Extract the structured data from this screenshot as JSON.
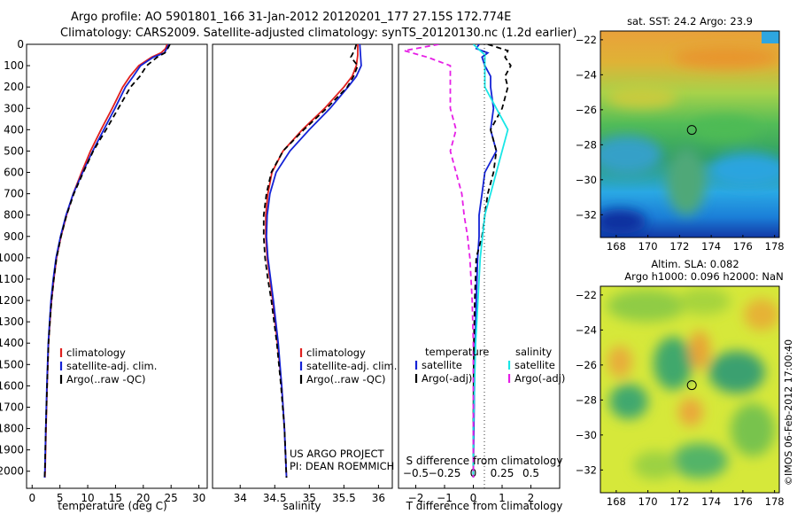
{
  "header": {
    "line1": "Argo profile: AO 5901801_166 31-Jan-2012 20120201_177 27.15S 172.774E",
    "line2": "Climatology: CARS2009. Satellite-adjusted climatology: synTS_20120130.nc (1.2d earlier)"
  },
  "side_label": "©IMOS 06-Feb-2012 17:00:40",
  "colors": {
    "red": "#e0201e",
    "blue": "#1423d6",
    "black": "#000000",
    "cyan": "#19e6e6",
    "magenta": "#e61ee6"
  },
  "depth_axis": {
    "ylim": [
      0,
      2080
    ],
    "ticks": [
      0,
      100,
      200,
      300,
      400,
      500,
      600,
      700,
      800,
      900,
      1000,
      1100,
      1200,
      1300,
      1400,
      1500,
      1600,
      1700,
      1800,
      1900,
      2000
    ]
  },
  "chart_data": [
    {
      "type": "line",
      "xlabel": "temperature (deg C)",
      "xlim": [
        -1,
        31.5
      ],
      "xticks": [
        0,
        5,
        10,
        15,
        20,
        25,
        30
      ],
      "legend": {
        "placement": "bottom-left",
        "items": [
          {
            "name": "climatology",
            "color": "#e0201e"
          },
          {
            "name": "satellite-adj. clim.",
            "color": "#1423d6"
          },
          {
            "name": "Argo(..raw -QC)",
            "color": "#000000"
          }
        ]
      },
      "series": [
        {
          "name": "climatology",
          "color": "#e0201e",
          "dash": "none",
          "depth": [
            0,
            20,
            40,
            60,
            100,
            150,
            200,
            300,
            400,
            500,
            600,
            700,
            800,
            900,
            1000,
            1100,
            1200,
            1300,
            1400,
            1600,
            1800,
            2000,
            2030
          ],
          "values": [
            24.3,
            24,
            23.2,
            21.5,
            19.2,
            17.6,
            16.3,
            14.4,
            12.4,
            10.5,
            8.9,
            7.4,
            6.2,
            5.2,
            4.4,
            3.9,
            3.5,
            3.2,
            2.95,
            2.7,
            2.5,
            2.35,
            2.3
          ]
        },
        {
          "name": "satellite-adj. clim.",
          "color": "#1423d6",
          "dash": "none",
          "depth": [
            0,
            20,
            40,
            60,
            100,
            150,
            200,
            300,
            400,
            500,
            600,
            700,
            800,
            900,
            1000,
            1100,
            1200,
            1300,
            1400,
            1600,
            1800,
            2000,
            2030
          ],
          "values": [
            24.6,
            24.2,
            23.8,
            21.8,
            19.5,
            18.2,
            16.8,
            14.9,
            12.9,
            10.9,
            9.1,
            7.4,
            6.1,
            5.1,
            4.3,
            3.8,
            3.4,
            3.15,
            2.9,
            2.65,
            2.45,
            2.3,
            2.25
          ]
        },
        {
          "name": "Argo(..raw -QC)",
          "color": "#000000",
          "dash": "6,4",
          "depth": [
            0,
            20,
            40,
            60,
            100,
            150,
            200,
            300,
            400,
            500,
            600,
            700,
            800,
            900,
            1000,
            1100,
            1200,
            1300,
            1400,
            1600,
            1800,
            2000,
            2030
          ],
          "values": [
            24.8,
            24.4,
            23.9,
            22.5,
            20.6,
            19.4,
            17.7,
            15.5,
            13.3,
            11,
            9.2,
            7.5,
            6.2,
            5.2,
            4.4,
            3.9,
            3.5,
            3.2,
            2.95,
            2.7,
            2.45,
            2.3,
            2.25
          ]
        }
      ]
    },
    {
      "type": "line",
      "xlabel": "salinity",
      "xlim": [
        33.6,
        36.2
      ],
      "xticks": [
        34,
        34.5,
        35,
        35.5,
        36
      ],
      "xtick_labels": [
        "34",
        "34.5",
        "35",
        "35.5",
        "36"
      ],
      "legend": {
        "placement": "bottom-right",
        "items": [
          {
            "name": "climatology",
            "color": "#e0201e"
          },
          {
            "name": "satellite-adj. clim.",
            "color": "#1423d6"
          },
          {
            "name": "Argo(..raw -QC)",
            "color": "#000000"
          }
        ]
      },
      "annotation": [
        "US ARGO PROJECT",
        "PI: DEAN ROEMMICH"
      ],
      "series": [
        {
          "name": "climatology",
          "color": "#e0201e",
          "dash": "none",
          "depth": [
            0,
            50,
            100,
            150,
            200,
            300,
            400,
            500,
            600,
            700,
            800,
            900,
            1000,
            1100,
            1200,
            1400,
            1600,
            1800,
            2030
          ],
          "values": [
            35.7,
            35.7,
            35.68,
            35.62,
            35.5,
            35.22,
            34.9,
            34.62,
            34.46,
            34.4,
            34.37,
            34.37,
            34.39,
            34.43,
            34.47,
            34.54,
            34.6,
            34.64,
            34.67
          ]
        },
        {
          "name": "satellite-adj. clim.",
          "color": "#1423d6",
          "dash": "none",
          "depth": [
            0,
            50,
            100,
            150,
            200,
            300,
            400,
            500,
            600,
            700,
            800,
            900,
            1000,
            1100,
            1200,
            1400,
            1600,
            1800,
            2030
          ],
          "values": [
            35.73,
            35.74,
            35.75,
            35.68,
            35.56,
            35.3,
            35,
            34.72,
            34.52,
            34.43,
            34.39,
            34.38,
            34.4,
            34.44,
            34.48,
            34.55,
            34.6,
            34.64,
            34.67
          ]
        },
        {
          "name": "Argo(..raw -QC)",
          "color": "#000000",
          "dash": "6,4",
          "depth": [
            0,
            30,
            60,
            100,
            150,
            200,
            300,
            400,
            500,
            600,
            700,
            800,
            900,
            1000,
            1100,
            1200,
            1400,
            1600,
            1800,
            2030
          ],
          "values": [
            35.68,
            35.65,
            35.6,
            35.7,
            35.64,
            35.55,
            35.25,
            34.92,
            34.62,
            34.45,
            34.38,
            34.34,
            34.34,
            34.36,
            34.4,
            34.45,
            34.53,
            34.59,
            34.64,
            34.67
          ]
        }
      ]
    },
    {
      "type": "line",
      "xlabel": "T difference from climatology",
      "xlim": [
        -2.6,
        3
      ],
      "xticks": [
        -2,
        -1,
        0,
        1,
        2
      ],
      "top_label": "S difference from climatology",
      "top_ticks": [
        -0.5,
        -0.25,
        0,
        0.25,
        0.5
      ],
      "top_tick_labels": [
        "−0.5",
        "−0.25",
        "0",
        "0.25",
        "0.5"
      ],
      "legend": {
        "placement": "bottom",
        "groups": [
          {
            "title": "temperature",
            "items": [
              {
                "name": "satellite",
                "color": "#1423d6"
              },
              {
                "name": "Argo(-adj)",
                "color": "#000000"
              }
            ]
          },
          {
            "title": "salinity",
            "items": [
              {
                "name": "satellite",
                "color": "#19e6e6"
              },
              {
                "name": "Argo(-adj)",
                "color": "#e61ee6"
              }
            ]
          }
        ]
      },
      "series": [
        {
          "name": "temperature satellite",
          "color": "#1423d6",
          "dash": "none",
          "depth": [
            0,
            20,
            40,
            60,
            100,
            150,
            200,
            300,
            400,
            500,
            600,
            700,
            800,
            900,
            1000,
            1200,
            1400,
            1600,
            1800,
            2030
          ],
          "values": [
            0.2,
            0.1,
            0.5,
            0.3,
            0.4,
            0.6,
            0.6,
            0.7,
            0.6,
            0.8,
            0.4,
            0.3,
            0.2,
            0.2,
            0.15,
            0.1,
            0.06,
            0.04,
            0.02,
            0
          ]
        },
        {
          "name": "temperature Argo(-adj)",
          "color": "#000000",
          "dash": "6,4",
          "depth": [
            0,
            30,
            60,
            100,
            150,
            200,
            300,
            400,
            500,
            600,
            700,
            800,
            900,
            1000,
            1200,
            1400,
            1600,
            1800,
            2030
          ],
          "values": [
            0.5,
            1.2,
            1.1,
            1.3,
            1.1,
            1.2,
            1.0,
            0.6,
            0.8,
            0.7,
            0.5,
            0.4,
            0.3,
            0.1,
            0.05,
            0.02,
            0.01,
            0,
            0
          ]
        },
        {
          "name": "salinity satellite",
          "color": "#19e6e6",
          "dash": "none",
          "depth": [
            0,
            50,
            100,
            200,
            300,
            400,
            500,
            600,
            700,
            800,
            900,
            1000,
            1200,
            1400,
            1600,
            1800,
            2030
          ],
          "values": [
            0,
            0.1,
            0.1,
            0.1,
            0.2,
            0.3,
            0.25,
            0.2,
            0.15,
            0.1,
            0.08,
            0.06,
            0.04,
            0.02,
            0.01,
            0,
            0
          ]
        },
        {
          "name": "salinity Argo(-adj)",
          "color": "#e61ee6",
          "dash": "6,4",
          "depth": [
            0,
            30,
            60,
            100,
            200,
            300,
            400,
            500,
            600,
            700,
            800,
            900,
            1000,
            1200,
            1400,
            1600,
            1800,
            2030
          ],
          "values": [
            -0.3,
            -0.6,
            -0.4,
            -0.2,
            -0.2,
            -0.2,
            -0.15,
            -0.2,
            -0.15,
            -0.1,
            -0.08,
            -0.05,
            -0.03,
            -0.01,
            0,
            0,
            0,
            0
          ]
        }
      ]
    },
    {
      "type": "heatmap",
      "title": "sat. SST: 24.2 Argo: 23.9",
      "xlim": [
        167,
        178.3
      ],
      "ylim": [
        -33.3,
        -21.5
      ],
      "xticks": [
        168,
        170,
        172,
        174,
        176,
        178
      ],
      "yticks": [
        -22,
        -24,
        -26,
        -28,
        -30,
        -32
      ],
      "marker": {
        "lon": 172.774,
        "lat": -27.15
      }
    },
    {
      "type": "heatmap",
      "title_lines": [
        "Altim. SLA: 0.082",
        "Argo h1000: 0.096 h2000: NaN"
      ],
      "xlim": [
        167,
        178.3
      ],
      "ylim": [
        -33.3,
        -21.5
      ],
      "xticks": [
        168,
        170,
        172,
        174,
        176,
        178
      ],
      "yticks": [
        -22,
        -24,
        -26,
        -28,
        -30,
        -32
      ],
      "marker": {
        "lon": 172.774,
        "lat": -27.15
      }
    }
  ]
}
